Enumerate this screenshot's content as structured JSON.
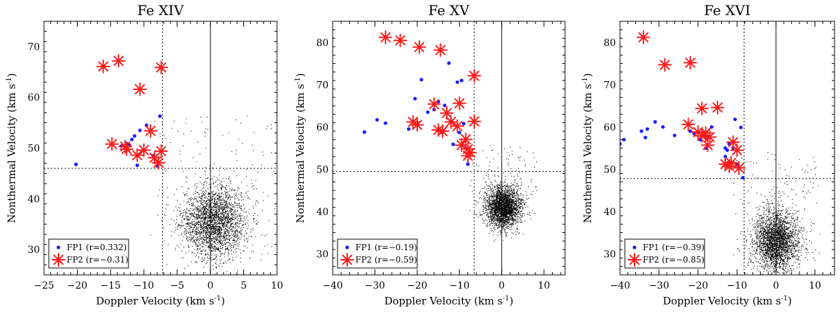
{
  "chart_data": [
    {
      "type": "scatter",
      "title": "Fe XIV",
      "xlabel": "Doppler Velocity (km s",
      "ylabel": "Nonthermal Velocity (km s",
      "unit_sup": "-1",
      "unit_close": ")",
      "xlim": [
        -25,
        10
      ],
      "ylim": [
        25,
        75
      ],
      "xticks": [
        -25,
        -20,
        -15,
        -10,
        -5,
        0,
        5,
        10
      ],
      "yticks": [
        30,
        40,
        50,
        60,
        70
      ],
      "xtick_labels": [
        "−25",
        "−20",
        "−15",
        "−10",
        "−5",
        "0",
        "5",
        "10"
      ],
      "ytick_labels": [
        "30",
        "40",
        "50",
        "60",
        "70"
      ],
      "ref_x_dotted": -7.2,
      "ref_y_dotted": 46,
      "legend_placement": "bottom-left",
      "background_cloud": {
        "center": [
          0.5,
          35.5
        ],
        "spread": [
          2.4,
          3.6
        ]
      },
      "series": [
        {
          "name": "FP1",
          "legend": "FP1 (r=0.332)",
          "marker": "dot",
          "color": "#1a1aff",
          "x": [
            -20.2,
            -13.4,
            -12.6,
            -12.2,
            -11.8,
            -11.4,
            -11.0,
            -10.6,
            -9.6,
            -8.6,
            -8.0,
            -7.6
          ],
          "y": [
            46.8,
            50.4,
            50.9,
            50.6,
            51.7,
            52.4,
            46.6,
            53.5,
            54.5,
            48.5,
            46.5,
            56.3
          ]
        },
        {
          "name": "FP2",
          "legend": "FP2 (r=−0.31)",
          "marker": "star",
          "color": "#ff1a1a",
          "x": [
            -16.1,
            -13.8,
            -7.4,
            -10.6,
            -14.8,
            -12.8,
            -12.6,
            -10.0,
            -9.0,
            -11.0,
            -8.4,
            -7.4,
            -7.8
          ],
          "y": [
            66.1,
            67.2,
            65.9,
            61.6,
            50.8,
            50.3,
            49.8,
            49.6,
            53.4,
            48.6,
            48.1,
            49.4,
            47.1
          ]
        }
      ]
    },
    {
      "type": "scatter",
      "title": "Fe XV",
      "xlabel": "Doppler Velocity (km s",
      "ylabel": "Nonthermal Velocity (km s",
      "unit_sup": "-1",
      "unit_close": ")",
      "xlim": [
        -40,
        15
      ],
      "ylim": [
        25,
        85
      ],
      "xticks": [
        -40,
        -30,
        -20,
        -10,
        0,
        10
      ],
      "yticks": [
        30,
        40,
        50,
        60,
        70,
        80
      ],
      "xtick_labels": [
        "−40",
        "−30",
        "−20",
        "−10",
        "0",
        "10"
      ],
      "ytick_labels": [
        "30",
        "40",
        "50",
        "60",
        "70",
        "80"
      ],
      "ref_x_dotted": -6.5,
      "ref_y_dotted": 49.5,
      "legend_placement": "bottom-left",
      "background_cloud": {
        "center": [
          0.3,
          41.0
        ],
        "spread": [
          2.0,
          2.5
        ]
      },
      "series": [
        {
          "name": "FP1",
          "legend": "FP1 (r=−0.19)",
          "marker": "dot",
          "color": "#1a1aff",
          "x": [
            -32.5,
            -29.5,
            -27.5,
            -22,
            -20.5,
            -19,
            -17.5,
            -16,
            -15,
            -13.5,
            -12.5,
            -11.5,
            -10.5,
            -10,
            -9.5,
            -9,
            -8.5,
            -8,
            -8
          ],
          "y": [
            58.8,
            61.7,
            60.9,
            59.5,
            66.7,
            71.2,
            63.5,
            64.1,
            66.0,
            65.1,
            75.1,
            55.9,
            70.6,
            58.7,
            71.0,
            60.8,
            55.0,
            51.2,
            53.5
          ]
        },
        {
          "name": "FP2",
          "legend": "FP2 (r=−0.59)",
          "marker": "star",
          "color": "#ff1a1a",
          "x": [
            -27.5,
            -24,
            -19.5,
            -14.5,
            -6.5,
            -21,
            -20,
            -16,
            -15,
            -14,
            -13,
            -12,
            -10.5,
            -10,
            -9.5,
            -8.5,
            -8,
            -7.5,
            -8,
            -6.5
          ],
          "y": [
            81.2,
            80.5,
            78.9,
            78.2,
            72.1,
            61.2,
            60.5,
            65.4,
            59.3,
            59.0,
            63.3,
            61.2,
            60.2,
            65.6,
            55.7,
            57.1,
            54.8,
            53.9,
            53.2,
            61.3
          ]
        }
      ]
    },
    {
      "type": "scatter",
      "title": "Fe XVI",
      "xlabel": "Doppler Velocity (km s",
      "ylabel": "Nonthermal Velocity (km s",
      "unit_sup": "-1",
      "unit_close": ")",
      "xlim": [
        -40,
        15
      ],
      "ylim": [
        25,
        85
      ],
      "xticks": [
        -40,
        -30,
        -20,
        -10,
        0,
        10
      ],
      "yticks": [
        30,
        40,
        50,
        60,
        70,
        80
      ],
      "xtick_labels": [
        "−40",
        "−30",
        "−20",
        "−10",
        "0",
        "10"
      ],
      "ytick_labels": [
        "30",
        "40",
        "50",
        "60",
        "70",
        "80"
      ],
      "ref_x_dotted": -8.2,
      "ref_y_dotted": 47.8,
      "legend_placement": "bottom-left",
      "background_cloud": {
        "center": [
          0.0,
          33.0
        ],
        "spread": [
          2.8,
          3.6
        ]
      },
      "series": [
        {
          "name": "FP1",
          "legend": "FP1 (r=−0.39)",
          "marker": "dot",
          "color": "#1a1aff",
          "x": [
            -40,
            -39,
            -34.5,
            -33.5,
            -33,
            -31,
            -29,
            -26,
            -22,
            -21,
            -19.5,
            -18.5,
            -18,
            -17.5,
            -16.5,
            -13,
            -12.5,
            -12,
            -11,
            -10.5,
            -10,
            -9,
            -8.5,
            -13
          ],
          "y": [
            56.0,
            57.0,
            59.0,
            57.5,
            59.5,
            61.2,
            60.0,
            58.0,
            59.0,
            58.5,
            57.0,
            58.0,
            55.0,
            57.5,
            60.0,
            55.0,
            54.5,
            56.0,
            55.0,
            61.8,
            51.0,
            59.9,
            48.0,
            53.0
          ]
        },
        {
          "name": "FP2",
          "legend": "FP2 (r=−0.85)",
          "marker": "star",
          "color": "#ff1a1a",
          "x": [
            -34,
            -28.5,
            -22,
            -19,
            -15,
            -22.5,
            -20,
            -19,
            -18,
            -17,
            -17.5,
            -11,
            -10,
            -13,
            -12,
            -9.5,
            -11.5
          ],
          "y": [
            81.2,
            74.7,
            75.2,
            64.4,
            64.6,
            60.6,
            58.8,
            57.9,
            58.6,
            57.6,
            55.7,
            56.4,
            54.5,
            51.2,
            50.7,
            50.3,
            51.5
          ]
        }
      ]
    }
  ]
}
